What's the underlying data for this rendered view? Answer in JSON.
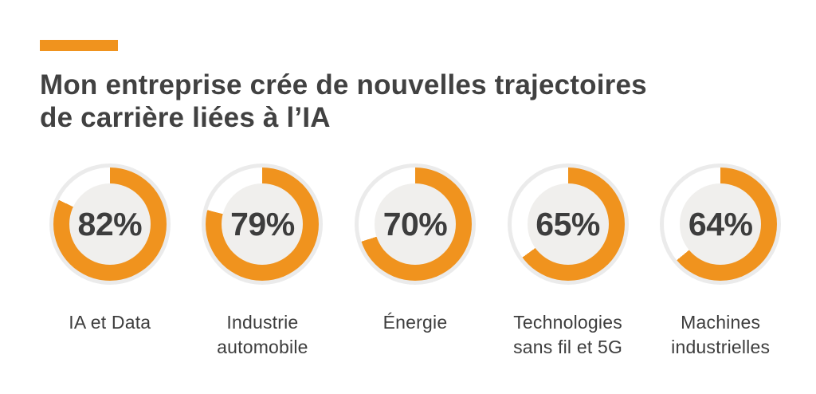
{
  "header": {
    "title": "Mon entreprise crée de nouvelles trajectoires de carrière liées à l’IA",
    "title_lines": [
      "Mon entreprise crée de nouvelles trajectoires",
      "de carrière liées à l’IA"
    ]
  },
  "colors": {
    "accent": "#F0931E",
    "ring_track": "#FFFFFF",
    "circle_bg": "#EBEBEB",
    "hole_bg": "#F0EFED",
    "title_text": "#414141",
    "dark_text": "#3D3D3D",
    "background": "#FFFFFF"
  },
  "chart_data": {
    "type": "pie",
    "variant": "donut-gauge-row",
    "title": "Mon entreprise crée de nouvelles trajectoires de carrière liées à l’IA",
    "unit": "%",
    "start_angle_deg": 0,
    "direction": "clockwise",
    "categories": [
      "IA et Data",
      "Industrie automobile",
      "Énergie",
      "Technologies sans fil et 5G",
      "Machines industrielles"
    ],
    "values": [
      82,
      79,
      70,
      65,
      64
    ],
    "gauges": [
      {
        "label": "IA et Data",
        "value": 82,
        "display": "82%"
      },
      {
        "label": "Industrie automobile",
        "value": 79,
        "display": "79%"
      },
      {
        "label": "Énergie",
        "value": 70,
        "display": "70%"
      },
      {
        "label": "Technologies sans fil et 5G",
        "value": 65,
        "display": "65%"
      },
      {
        "label": "Machines industrielles",
        "value": 64,
        "display": "64%"
      }
    ]
  }
}
